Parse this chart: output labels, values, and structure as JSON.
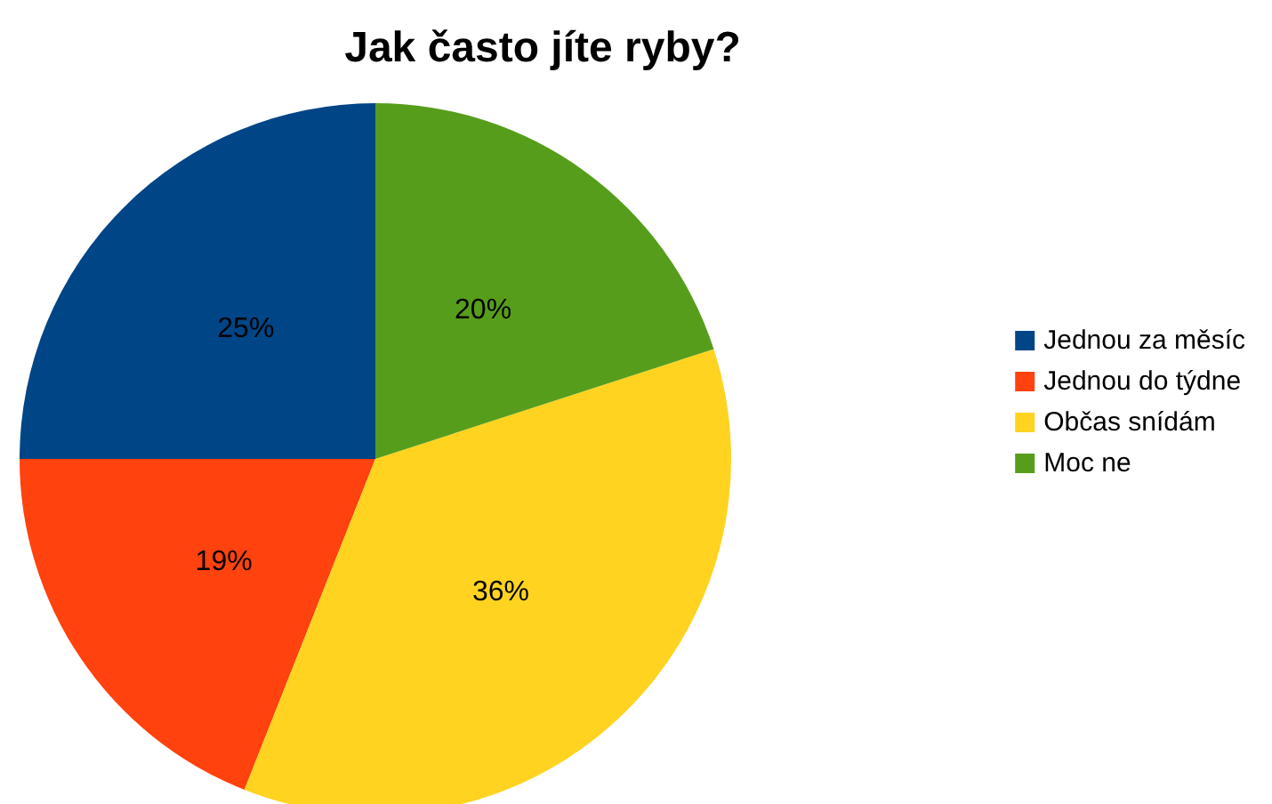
{
  "chart_data": {
    "type": "pie",
    "title": "Jak často jíte ryby?",
    "categories": [
      "Jednou za měsíc",
      "Jednou do týdne",
      "Občas snídám",
      "Moc ne"
    ],
    "values": [
      25,
      19,
      36,
      20
    ],
    "colors": [
      "#004586",
      "#ff420e",
      "#ffd320",
      "#579d1c"
    ],
    "value_labels": [
      "25%",
      "19%",
      "36%",
      "20%"
    ],
    "legend": "right"
  }
}
